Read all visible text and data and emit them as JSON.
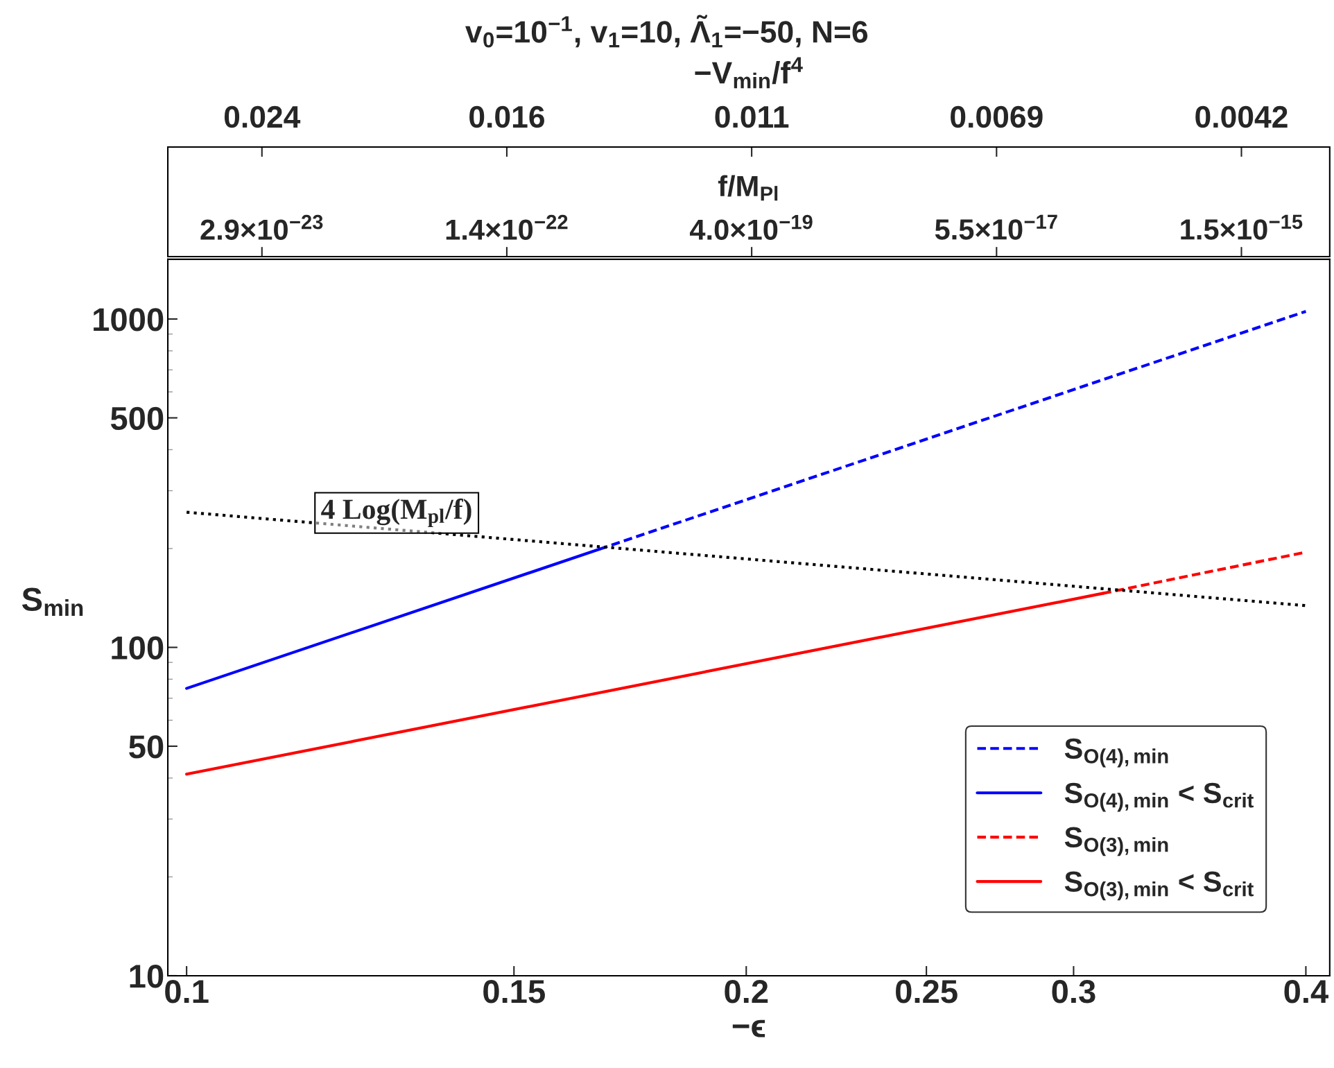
{
  "chart_data": {
    "type": "line",
    "title": "v$_{0}$=10$^{−1}$, v$_{1}$=10, Λ̃$_{1}$=−50, N=6",
    "xlabel": "−ϵ",
    "ylabel": "S$_{min}$",
    "x2label": "f/M$_{Pl}$",
    "log": "xy",
    "grid": false,
    "legend": "bottom right",
    "xlim": [
      0.0977,
      0.412
    ],
    "ylim": [
      10,
      1520
    ],
    "xticks": [
      0.1,
      0.15,
      0.2,
      0.25,
      0.3,
      0.4
    ],
    "yticks": [
      10,
      {
        "value": 20,
        "label": null
      },
      {
        "value": 30,
        "label": null
      },
      {
        "value": 40,
        "label": null
      },
      50,
      {
        "value": 60,
        "label": null
      },
      {
        "value": 70,
        "label": null
      },
      {
        "value": 80,
        "label": null
      },
      {
        "value": 90,
        "label": null
      },
      100,
      {
        "value": 200,
        "label": null
      },
      {
        "value": 300,
        "label": null
      },
      {
        "value": 400,
        "label": null
      },
      500,
      {
        "value": 600,
        "label": null
      },
      {
        "value": 700,
        "label": null
      },
      {
        "value": 800,
        "label": null
      },
      {
        "value": 900,
        "label": null
      },
      1000
    ],
    "series": [
      {
        "name": "S$_{O(4),min}$",
        "color": "#0000ff",
        "line_style": "dashed",
        "x": [
          0.1667,
          0.4
        ],
        "values": [
          199,
          1055
        ]
      },
      {
        "name": "S$_{O(4),min}$ < S$_{crit}$",
        "color": "#0000ff",
        "line_style": "solid",
        "x": [
          0.1,
          0.1667
        ],
        "values": [
          75,
          199
        ]
      },
      {
        "name": "S$_{O(3),min}$",
        "color": "#ff0000",
        "line_style": "dashed",
        "x": [
          0.311,
          0.4
        ],
        "values": [
          146,
          195
        ]
      },
      {
        "name": "S$_{O(3),min}$ < S$_{crit}$",
        "color": "#ff0000",
        "line_style": "solid",
        "x": [
          0.1,
          0.311
        ],
        "values": [
          41.1,
          146
        ]
      },
      {
        "color": "#000000",
        "line_style": "dotted",
        "x": [
          0.1,
          0.4
        ],
        "values": [
          258,
          134
        ]
      }
    ],
    "annotations": [
      "−V$_{min}$/f$^{4}$",
      "0.024",
      "0.016",
      "0.011",
      "0.0069",
      "0.0042",
      "2.9×10$^{−23}$",
      "1.4×10$^{−22}$",
      "4.0×10$^{−19}$",
      "5.5×10$^{−17}$",
      "1.5×10$^{−15}$",
      "4 Log(M$_{pl}$/f)"
    ]
  }
}
